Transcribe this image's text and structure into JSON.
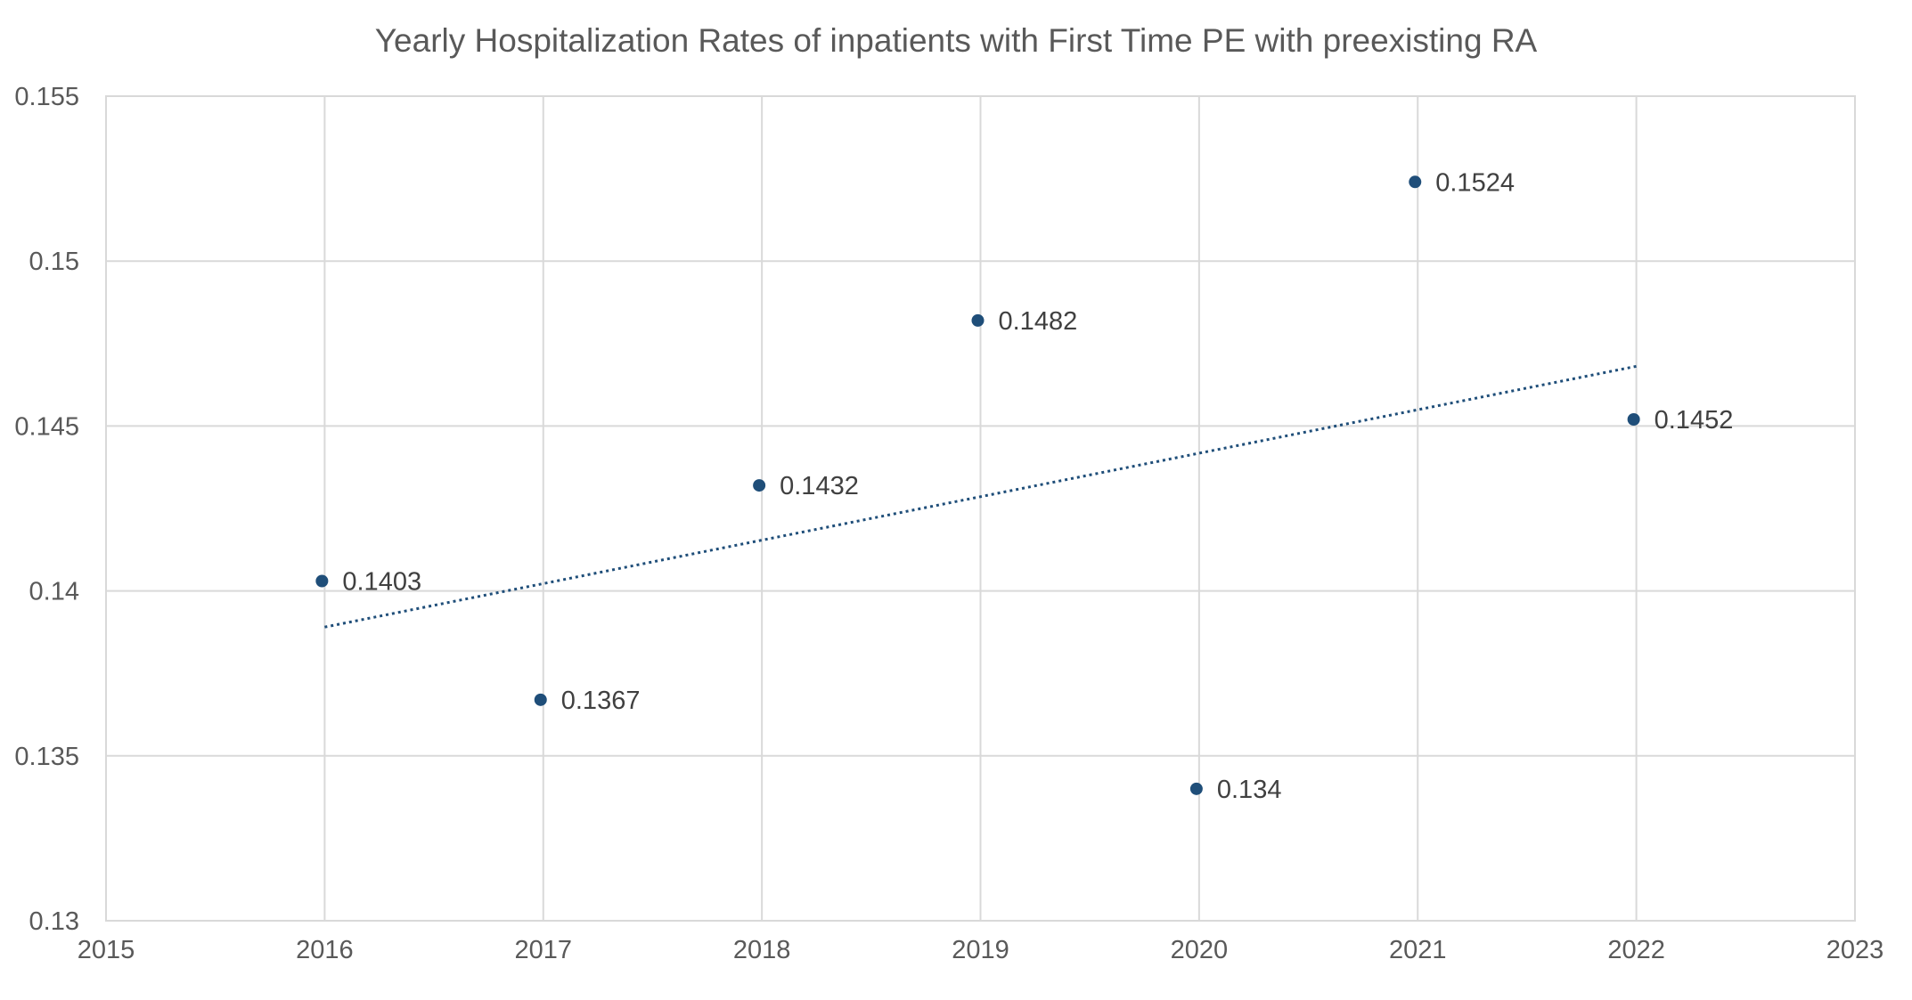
{
  "chart_data": {
    "type": "scatter",
    "title": "Yearly Hospitalization Rates of inpatients with First Time  PE with preexisting RA",
    "xlabel": "",
    "ylabel": "",
    "xlim": [
      2015,
      2023
    ],
    "ylim": [
      0.13,
      0.155
    ],
    "x_ticks": [
      "2015",
      "2016",
      "2017",
      "2018",
      "2019",
      "2020",
      "2021",
      "2022",
      "2023"
    ],
    "y_ticks": [
      "0.13",
      "0.135",
      "0.14",
      "0.145",
      "0.15",
      "0.155"
    ],
    "grid": true,
    "legend": "none",
    "series": [
      {
        "x": [
          2016,
          2017,
          2018,
          2019,
          2020,
          2021,
          2022
        ],
        "y": [
          0.1403,
          0.1367,
          0.1432,
          0.1482,
          0.134,
          0.1524,
          0.1452
        ],
        "labels": [
          "0.1403",
          "0.1367",
          "0.1432",
          "0.1482",
          "0.134",
          "0.1524",
          "0.1452"
        ],
        "color": "#1f4e79",
        "trendline": {
          "type": "linear",
          "style": "dotted",
          "x": [
            2016,
            2022
          ]
        }
      }
    ]
  }
}
